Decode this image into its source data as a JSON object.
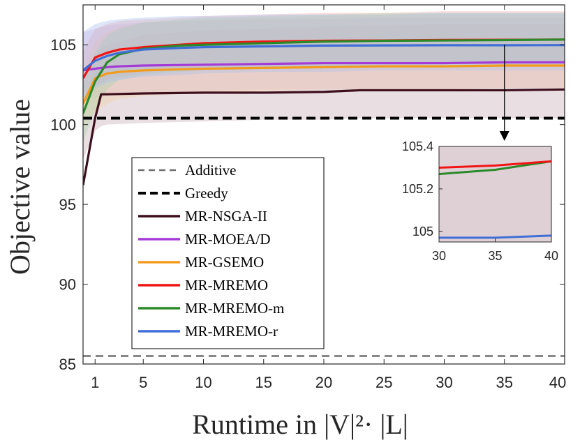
{
  "chart_data": {
    "type": "line",
    "xlabel": "Runtime in |V|²· |L|",
    "ylabel": "Objective value",
    "xlim": [
      0,
      40
    ],
    "ylim": [
      85,
      107.5
    ],
    "xticks": [
      1,
      5,
      10,
      15,
      20,
      25,
      30,
      35,
      40
    ],
    "yticks": [
      85,
      90,
      95,
      100,
      105
    ],
    "legend_position": "lower-left",
    "baselines": [
      {
        "name": "Additive",
        "value": 85.5,
        "color": "#6e6e6e",
        "style": "dashed-thin"
      },
      {
        "name": "Greedy",
        "value": 100.4,
        "color": "#000000",
        "style": "dashed-thick"
      }
    ],
    "series": [
      {
        "name": "MR-NSGA-II",
        "color": "#3d0f1c",
        "band_color": "#c5a9b3",
        "x": [
          0,
          1,
          1.5,
          2,
          5,
          10,
          15,
          20,
          23,
          25,
          30,
          35,
          40
        ],
        "values": [
          96.2,
          100.4,
          101.9,
          101.9,
          101.95,
          102.0,
          102.0,
          102.05,
          102.15,
          102.15,
          102.15,
          102.15,
          102.2
        ],
        "band": [
          [
            97.8,
            100.3
          ],
          [
            99.6,
            104.2
          ],
          [
            99.9,
            104.8
          ],
          [
            100.0,
            105.0
          ],
          [
            100.1,
            105.6
          ],
          [
            100.2,
            105.9
          ],
          [
            100.3,
            106.0
          ],
          [
            100.3,
            106.1
          ],
          [
            100.4,
            106.2
          ],
          [
            100.4,
            106.2
          ],
          [
            100.4,
            106.3
          ],
          [
            100.4,
            106.3
          ],
          [
            100.4,
            106.3
          ]
        ]
      },
      {
        "name": "MR-MOEA/D",
        "color": "#a43bd6",
        "band_color": "#d7b3e8",
        "x": [
          0,
          1,
          2,
          3,
          5,
          10,
          15,
          20,
          25,
          30,
          35,
          40
        ],
        "values": [
          103.4,
          103.5,
          103.6,
          103.65,
          103.7,
          103.75,
          103.8,
          103.85,
          103.85,
          103.85,
          103.9,
          103.9
        ],
        "band": [
          [
            101.5,
            105.8
          ],
          [
            101.7,
            106.0
          ],
          [
            101.8,
            106.2
          ],
          [
            101.9,
            106.3
          ],
          [
            102.0,
            106.4
          ],
          [
            102.1,
            106.5
          ],
          [
            102.2,
            106.6
          ],
          [
            102.2,
            106.6
          ],
          [
            102.2,
            106.7
          ],
          [
            102.2,
            106.7
          ],
          [
            102.3,
            106.7
          ],
          [
            102.3,
            106.7
          ]
        ]
      },
      {
        "name": "MR-GSEMO",
        "color": "#f29b1d",
        "band_color": "#f5d3a0",
        "x": [
          0,
          1,
          2,
          3,
          5,
          10,
          15,
          20,
          25,
          30,
          35,
          40
        ],
        "values": [
          101.3,
          102.9,
          103.2,
          103.3,
          103.4,
          103.5,
          103.55,
          103.6,
          103.65,
          103.65,
          103.7,
          103.7
        ],
        "band": [
          [
            99.8,
            103.4
          ],
          [
            100.8,
            105.2
          ],
          [
            101.3,
            105.8
          ],
          [
            101.6,
            106.1
          ],
          [
            101.8,
            106.4
          ],
          [
            102.0,
            106.6
          ],
          [
            102.1,
            106.7
          ],
          [
            102.2,
            106.8
          ],
          [
            102.2,
            106.9
          ],
          [
            102.2,
            106.9
          ],
          [
            102.3,
            106.9
          ],
          [
            102.3,
            106.9
          ]
        ]
      },
      {
        "name": "MR-MREMO",
        "color": "#f21414",
        "band_color": "#f5a7a7",
        "x": [
          0,
          1,
          2,
          3,
          5,
          8,
          10,
          15,
          20,
          25,
          30,
          35,
          40
        ],
        "values": [
          102.9,
          104.2,
          104.5,
          104.7,
          104.85,
          105.0,
          105.1,
          105.2,
          105.25,
          105.27,
          105.3,
          105.31,
          105.33
        ],
        "band": [
          [
            101.2,
            104.6
          ],
          [
            102.4,
            106.0
          ],
          [
            102.8,
            106.3
          ],
          [
            103.0,
            106.5
          ],
          [
            103.2,
            106.6
          ],
          [
            103.4,
            106.7
          ],
          [
            103.5,
            106.8
          ],
          [
            103.6,
            106.9
          ],
          [
            103.7,
            107.0
          ],
          [
            103.7,
            107.0
          ],
          [
            103.8,
            107.1
          ],
          [
            103.8,
            107.1
          ],
          [
            103.8,
            107.1
          ]
        ]
      },
      {
        "name": "MR-MREMO-m",
        "color": "#2a8a2a",
        "band_color": "#a9d1a9",
        "x": [
          0,
          1,
          2,
          3,
          5,
          8,
          10,
          15,
          20,
          25,
          30,
          35,
          40
        ],
        "values": [
          100.7,
          102.7,
          103.9,
          104.4,
          104.75,
          104.95,
          105.0,
          105.1,
          105.2,
          105.25,
          105.27,
          105.29,
          105.33
        ],
        "band": [
          [
            98.9,
            102.5
          ],
          [
            100.9,
            104.5
          ],
          [
            102.2,
            105.6
          ],
          [
            102.8,
            106.0
          ],
          [
            103.1,
            106.4
          ],
          [
            103.3,
            106.6
          ],
          [
            103.4,
            106.7
          ],
          [
            103.5,
            106.8
          ],
          [
            103.6,
            106.9
          ],
          [
            103.7,
            107.0
          ],
          [
            103.7,
            107.0
          ],
          [
            103.7,
            107.0
          ],
          [
            103.8,
            107.0
          ]
        ]
      },
      {
        "name": "MR-MREMO-r",
        "color": "#3f6fd6",
        "band_color": "#a9c1ef",
        "x": [
          0,
          1,
          2,
          3,
          5,
          8,
          10,
          15,
          20,
          25,
          30,
          35,
          40
        ],
        "values": [
          103.4,
          104.0,
          104.3,
          104.5,
          104.7,
          104.8,
          104.85,
          104.9,
          104.95,
          104.96,
          104.97,
          104.97,
          104.98
        ],
        "band": [
          [
            101.7,
            105.8
          ],
          [
            102.3,
            106.3
          ],
          [
            102.6,
            106.5
          ],
          [
            102.8,
            106.6
          ],
          [
            103.0,
            106.7
          ],
          [
            103.1,
            106.8
          ],
          [
            103.2,
            106.8
          ],
          [
            103.3,
            106.9
          ],
          [
            103.3,
            106.9
          ],
          [
            103.4,
            106.9
          ],
          [
            103.4,
            107.0
          ],
          [
            103.4,
            107.0
          ],
          [
            103.4,
            107.0
          ]
        ]
      }
    ],
    "inset": {
      "xlim": [
        30,
        40
      ],
      "ylim": [
        104.95,
        105.4
      ],
      "xticks": [
        30,
        35,
        40
      ],
      "yticks": [
        105,
        105.2,
        105.4
      ],
      "ytick_labels": [
        "105",
        "105.2",
        "105.4"
      ],
      "zoom_target": {
        "x": 35,
        "y": 105.0
      }
    }
  }
}
